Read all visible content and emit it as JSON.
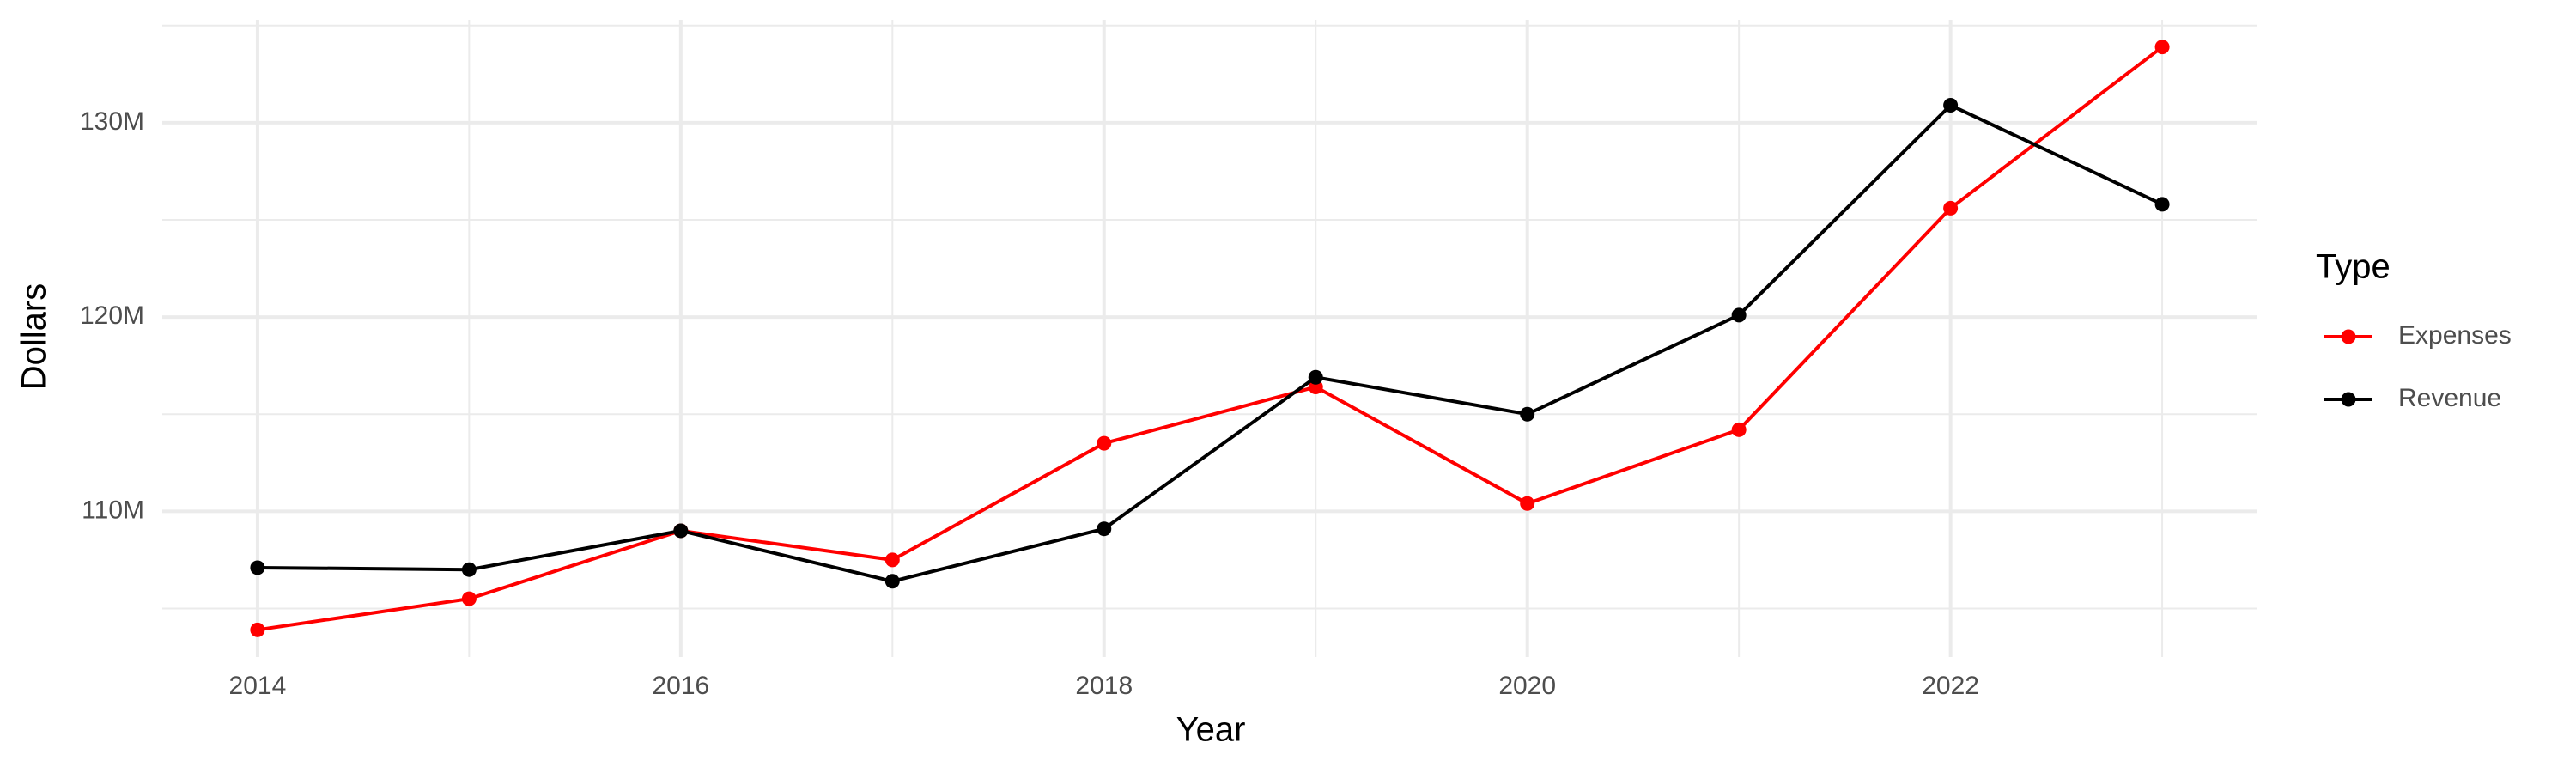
{
  "chart_data": {
    "type": "line",
    "x_label": "Year",
    "y_label": "Dollars",
    "legend_title": "Type",
    "legend_position": "right",
    "grid": true,
    "x": [
      2014,
      2015,
      2016,
      2017,
      2018,
      2019,
      2020,
      2021,
      2022,
      2023
    ],
    "series": [
      {
        "name": "Expenses",
        "color": "#ff0000",
        "values": [
          103900000,
          105500000,
          109000000,
          107500000,
          113500000,
          116400000,
          110400000,
          114200000,
          125600000,
          133900000
        ]
      },
      {
        "name": "Revenue",
        "color": "#000000",
        "values": [
          107100000,
          107000000,
          109000000,
          106400000,
          109100000,
          116900000,
          115000000,
          120100000,
          130900000,
          125800000
        ]
      }
    ],
    "xlim": [
      2013.55,
      2023.45
    ],
    "xticks": [
      2014,
      2016,
      2018,
      2020,
      2022
    ],
    "ylim": [
      102500000,
      135300000
    ],
    "yticks": [
      {
        "value": 110000000,
        "label": "110M"
      },
      {
        "value": 120000000,
        "label": "120M"
      },
      {
        "value": 130000000,
        "label": "130M"
      }
    ]
  }
}
